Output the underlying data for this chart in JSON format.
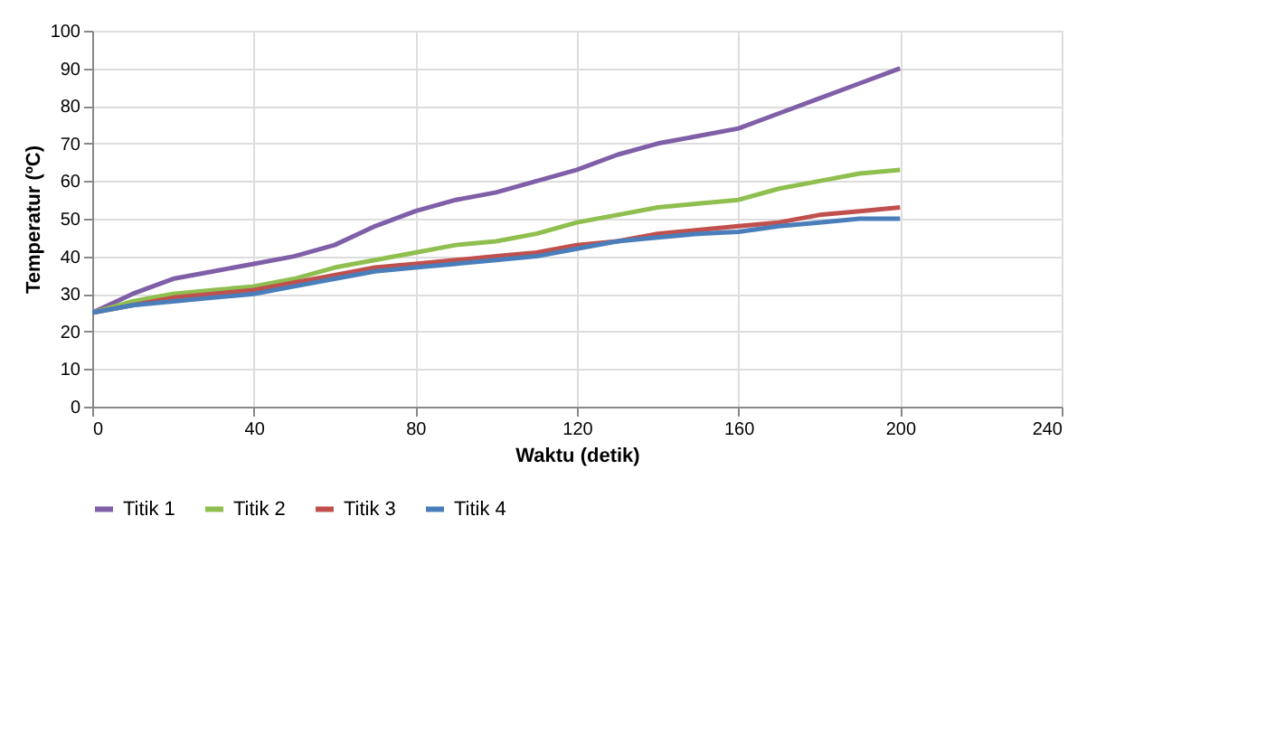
{
  "chart_data": {
    "type": "line",
    "xlabel": "Waktu (detik)",
    "ylabel": "Temperatur (ºC)",
    "x": [
      0,
      10,
      20,
      30,
      40,
      50,
      60,
      70,
      80,
      90,
      100,
      110,
      120,
      130,
      140,
      150,
      160,
      170,
      180,
      190,
      200
    ],
    "series": [
      {
        "name": "Titik 1",
        "color": "#7f5fa8",
        "values": [
          25,
          30,
          34,
          36,
          38,
          40,
          43,
          48,
          52,
          55,
          57,
          60,
          63,
          67,
          70,
          72,
          74,
          78,
          82,
          86,
          90
        ]
      },
      {
        "name": "Titik 2",
        "color": "#8fbf4f",
        "values": [
          25,
          28,
          30,
          31,
          32,
          34,
          37,
          39,
          41,
          43,
          44,
          46,
          49,
          51,
          53,
          54,
          55,
          58,
          60,
          62,
          63
        ]
      },
      {
        "name": "Titik 3",
        "color": "#c0504d",
        "values": [
          25,
          27,
          29,
          30,
          31,
          33,
          35,
          37,
          38,
          39,
          40,
          41,
          43,
          44,
          46,
          47,
          48,
          49,
          51,
          52,
          53
        ]
      },
      {
        "name": "Titik 4",
        "color": "#4a7ebb",
        "values": [
          25,
          27,
          28,
          29,
          30,
          32,
          34,
          36,
          37,
          38,
          39,
          40,
          42,
          44,
          45,
          46,
          46.5,
          48,
          49,
          50,
          50
        ]
      }
    ],
    "xlim": [
      0,
      240
    ],
    "xticks": [
      0,
      40,
      80,
      120,
      160,
      200,
      240
    ],
    "ylim": [
      0,
      100
    ],
    "yticks": [
      0,
      10,
      20,
      30,
      40,
      50,
      60,
      70,
      80,
      90,
      100
    ],
    "grid": true,
    "legend": "bottom",
    "marker": "none",
    "line_style": "solid"
  }
}
